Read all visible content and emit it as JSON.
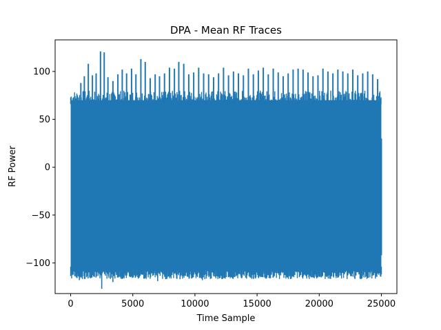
{
  "chart_data": {
    "type": "line",
    "title": "DPA - Mean RF Traces",
    "xlabel": "Time Sample",
    "ylabel": "RF Power",
    "xlim": [
      -1250,
      26250
    ],
    "ylim": [
      -132,
      133
    ],
    "xticks": [
      0,
      5000,
      10000,
      15000,
      20000,
      25000
    ],
    "xtick_labels": [
      "0",
      "5000",
      "10000",
      "15000",
      "20000",
      "25000"
    ],
    "yticks": [
      -100,
      -50,
      0,
      50,
      100
    ],
    "ytick_labels": [
      "−100",
      "−50",
      "0",
      "50",
      "100"
    ],
    "grid": false,
    "series": [
      {
        "color": "#1f77b4",
        "x_range": [
          0,
          25000
        ],
        "dense_band": {
          "lower": -108,
          "upper": 70
        },
        "peak_positions": [
          150,
          500,
          820,
          1100,
          1420,
          1750,
          2050,
          2400,
          2700,
          3000,
          3400,
          3800,
          4150,
          4500,
          4900,
          5250,
          5650,
          6000,
          6400,
          6800,
          7150,
          7550,
          7950,
          8350,
          8700,
          9100,
          9500,
          9900,
          10300,
          10700,
          11100,
          11500,
          11900,
          12300,
          12700,
          13100,
          13500,
          13900,
          14300,
          14700,
          15100,
          15500,
          15900,
          16300,
          16700,
          17100,
          17500,
          17900,
          18300,
          18700,
          19100,
          19500,
          19900,
          20300,
          20700,
          21100,
          21500,
          21900,
          22300,
          22700,
          23100,
          23500,
          23900,
          24300,
          24700
        ],
        "peak_values": [
          52,
          74,
          88,
          95,
          108,
          96,
          98,
          121,
          120,
          94,
          90,
          97,
          102,
          98,
          103,
          97,
          113,
          110,
          93,
          97,
          95,
          98,
          104,
          103,
          110,
          108,
          97,
          99,
          104,
          98,
          97,
          94,
          98,
          104,
          96,
          100,
          98,
          96,
          103,
          97,
          101,
          104,
          97,
          103,
          99,
          95,
          98,
          102,
          103,
          102,
          99,
          95,
          96,
          103,
          100,
          98,
          102,
          100,
          98,
          102,
          96,
          98,
          100,
          97,
          92
        ],
        "trough_positions": [
          150,
          700,
          1600,
          2500,
          3400,
          4300,
          5200,
          6100,
          7000,
          7900,
          8800,
          9700,
          10600,
          11500,
          12400,
          13300,
          14200,
          15100,
          16000,
          16900,
          17800,
          18700,
          19600,
          20500,
          21400,
          22300,
          23200,
          24100
        ],
        "trough_values": [
          -112,
          -118,
          -116,
          -127,
          -120,
          -116,
          -115,
          -113,
          -119,
          -114,
          -117,
          -113,
          -118,
          -114,
          -116,
          -114,
          -113,
          -115,
          -116,
          -113,
          -114,
          -112,
          -115,
          -113,
          -114,
          -113,
          -112,
          -111
        ],
        "end_value": -92
      }
    ]
  }
}
